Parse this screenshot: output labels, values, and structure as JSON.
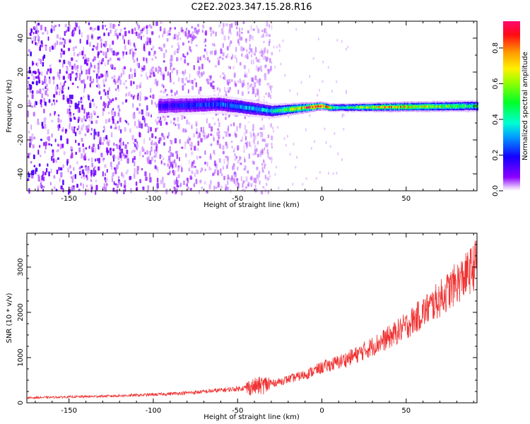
{
  "title": "C2E2.2023.347.15.28.R16",
  "chart_data": [
    {
      "type": "heatmap",
      "title": "",
      "xlabel": "Height of straight line (km)",
      "ylabel": "Frequency (Hz)",
      "xlim": [
        -175,
        92
      ],
      "ylim": [
        -50,
        50
      ],
      "xticks": [
        -150,
        -100,
        -50,
        0,
        50
      ],
      "yticks": [
        -40,
        -20,
        0,
        20,
        40
      ],
      "colorbar": {
        "label": "Normalized spectral amplitude",
        "range": [
          0,
          0.95
        ],
        "ticks": [
          "0.0",
          "0.2",
          "0.4",
          "0.6",
          "0.8"
        ],
        "tick_values": [
          0,
          0.2,
          0.4,
          0.6,
          0.8
        ],
        "colormap": "gist_rainbow (purple to red)"
      },
      "noise_region_km": [
        -175,
        -30
      ],
      "signal_band": {
        "x_start_km": -97,
        "x_end_km": 92,
        "center_hz": [
          [
            -97,
            0
          ],
          [
            -60,
            1
          ],
          [
            -30,
            -3
          ],
          [
            -10,
            -1
          ],
          [
            0,
            0
          ],
          [
            5,
            -1
          ],
          [
            92,
            0
          ]
        ],
        "half_width_hz": [
          [
            -97,
            6
          ],
          [
            -40,
            5
          ],
          [
            0,
            2.5
          ],
          [
            92,
            3.5
          ]
        ],
        "peak_amplitude": [
          [
            -97,
            0.15
          ],
          [
            -60,
            0.25
          ],
          [
            -30,
            0.35
          ],
          [
            -2,
            0.95
          ],
          [
            10,
            0.4
          ],
          [
            40,
            0.75
          ],
          [
            92,
            0.45
          ]
        ]
      }
    },
    {
      "type": "line",
      "title": "",
      "xlabel": "Height of straight line (km)",
      "ylabel": "SNR (10 * v/v)",
      "xlim": [
        -175,
        92
      ],
      "ylim": [
        0,
        3750
      ],
      "xticks": [
        -150,
        -100,
        -50,
        0,
        50
      ],
      "yticks": [
        0,
        1000,
        2000,
        3000
      ],
      "series": [
        {
          "color": "#f03232",
          "x": [
            -175,
            -150,
            -125,
            -100,
            -75,
            -50,
            -40,
            -30,
            -20,
            -10,
            0,
            10,
            20,
            30,
            40,
            50,
            60,
            70,
            80,
            85,
            90,
            92
          ],
          "y": [
            110,
            130,
            150,
            180,
            230,
            310,
            360,
            420,
            520,
            620,
            780,
            900,
            1050,
            1250,
            1450,
            1700,
            2000,
            2300,
            2650,
            2800,
            3000,
            3150
          ]
        }
      ]
    }
  ]
}
